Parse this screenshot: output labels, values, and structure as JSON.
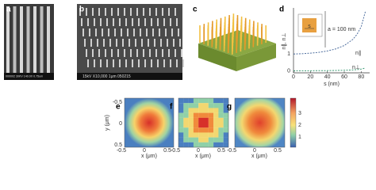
{
  "panels": {
    "a": {
      "label": "a",
      "sem_caption": "000002 30KV 140.0X 0.75um"
    },
    "b": {
      "label": "b",
      "sem_caption": "15kV X10,000 1μm 050215"
    },
    "c": {
      "label": "c"
    },
    "d": {
      "label": "d",
      "type": "line",
      "x_label": "s (nm)",
      "y_label": "n∥, n⊥",
      "inset_label": "s",
      "annotation": "a = 100 nm",
      "x": [
        0,
        10,
        20,
        30,
        40,
        50,
        60,
        70,
        75,
        80,
        85
      ],
      "series": [
        {
          "name": "n∥",
          "color": "#4f6f9f",
          "values": [
            1.0,
            1.02,
            1.05,
            1.1,
            1.18,
            1.3,
            1.5,
            1.85,
            2.15,
            2.6,
            3.5
          ]
        },
        {
          "name": "n⊥",
          "color": "#3c9a73",
          "values": [
            0.02,
            0.02,
            0.02,
            0.03,
            0.03,
            0.04,
            0.05,
            0.07,
            0.09,
            0.12,
            0.18
          ]
        }
      ],
      "xlim": [
        0,
        90
      ],
      "ylim": [
        -0.1,
        3.7
      ],
      "xticks": [
        0,
        20,
        40,
        60,
        80
      ],
      "yticks": [
        0,
        1
      ]
    },
    "e": {
      "label": "e",
      "y_label": "y (μm)",
      "x_label": "x (μm)",
      "yticks": [
        "-0.5",
        "0",
        "0.5"
      ],
      "xticks": [
        "-0.5",
        "0",
        "0.5"
      ]
    },
    "f": {
      "label": "f",
      "x_label": "x (μm)",
      "xticks": [
        "-0.5",
        "0",
        "0.5"
      ]
    },
    "g": {
      "label": "g",
      "x_label": "x (μm)",
      "xticks": [
        "-0.5",
        "0",
        "0.5"
      ],
      "colorbar_ticks": [
        "3",
        "2",
        "1"
      ]
    }
  }
}
